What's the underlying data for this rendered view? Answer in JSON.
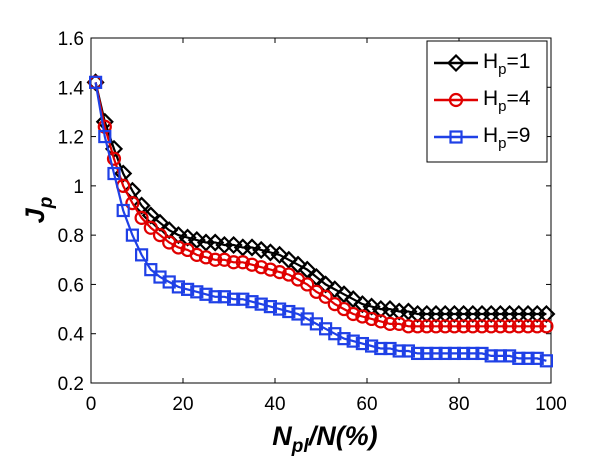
{
  "chart_data": {
    "type": "line",
    "title": "",
    "xlabel": {
      "main": "N",
      "sub": "pl",
      "rest": "/N(%)"
    },
    "ylabel": {
      "main": "J",
      "sub": "p"
    },
    "xlim": [
      0,
      100
    ],
    "ylim": [
      0.2,
      1.6
    ],
    "xticks": [
      "0",
      "20",
      "40",
      "60",
      "80",
      "100"
    ],
    "yticks": [
      "0.2",
      "0.4",
      "0.6",
      "0.8",
      "1",
      "1.2",
      "1.4",
      "1.6"
    ],
    "grid": false,
    "legend_position": "top-right",
    "x": [
      1,
      3,
      5,
      7,
      9,
      11,
      13,
      15,
      17,
      19,
      21,
      23,
      25,
      27,
      29,
      31,
      33,
      35,
      37,
      39,
      41,
      43,
      45,
      47,
      49,
      51,
      53,
      55,
      57,
      59,
      61,
      63,
      65,
      67,
      69,
      71,
      73,
      75,
      77,
      79,
      81,
      83,
      85,
      87,
      89,
      91,
      93,
      95,
      97,
      99
    ],
    "series": [
      {
        "name": "H_p=1",
        "legend": {
          "main": "H",
          "sub": "p",
          "rest": "=1"
        },
        "color": "#000000",
        "marker": "diamond",
        "values": [
          1.42,
          1.26,
          1.15,
          1.05,
          0.98,
          0.92,
          0.88,
          0.85,
          0.82,
          0.8,
          0.79,
          0.78,
          0.77,
          0.77,
          0.76,
          0.76,
          0.75,
          0.75,
          0.74,
          0.73,
          0.72,
          0.7,
          0.68,
          0.66,
          0.63,
          0.6,
          0.58,
          0.56,
          0.54,
          0.52,
          0.51,
          0.5,
          0.5,
          0.49,
          0.49,
          0.48,
          0.48,
          0.48,
          0.48,
          0.48,
          0.48,
          0.48,
          0.48,
          0.48,
          0.48,
          0.48,
          0.48,
          0.48,
          0.48,
          0.48
        ]
      },
      {
        "name": "H_p=4",
        "legend": {
          "main": "H",
          "sub": "p",
          "rest": "=4"
        },
        "color": "#e00000",
        "marker": "circle",
        "values": [
          1.42,
          1.24,
          1.11,
          1.0,
          0.93,
          0.87,
          0.83,
          0.8,
          0.77,
          0.75,
          0.74,
          0.72,
          0.71,
          0.7,
          0.7,
          0.69,
          0.69,
          0.68,
          0.67,
          0.66,
          0.65,
          0.64,
          0.62,
          0.6,
          0.57,
          0.55,
          0.52,
          0.5,
          0.48,
          0.47,
          0.46,
          0.45,
          0.44,
          0.44,
          0.43,
          0.43,
          0.43,
          0.43,
          0.43,
          0.43,
          0.43,
          0.43,
          0.43,
          0.43,
          0.43,
          0.43,
          0.43,
          0.43,
          0.43,
          0.43
        ]
      },
      {
        "name": "H_p=9",
        "legend": {
          "main": "H",
          "sub": "p",
          "rest": "=9"
        },
        "color": "#1f40e6",
        "marker": "square",
        "values": [
          1.42,
          1.2,
          1.05,
          0.9,
          0.8,
          0.72,
          0.66,
          0.63,
          0.61,
          0.59,
          0.58,
          0.57,
          0.56,
          0.55,
          0.55,
          0.54,
          0.54,
          0.53,
          0.52,
          0.51,
          0.5,
          0.49,
          0.48,
          0.46,
          0.44,
          0.42,
          0.4,
          0.38,
          0.37,
          0.36,
          0.35,
          0.34,
          0.34,
          0.33,
          0.33,
          0.32,
          0.32,
          0.32,
          0.32,
          0.32,
          0.32,
          0.32,
          0.32,
          0.31,
          0.31,
          0.31,
          0.3,
          0.3,
          0.3,
          0.29
        ]
      }
    ]
  }
}
